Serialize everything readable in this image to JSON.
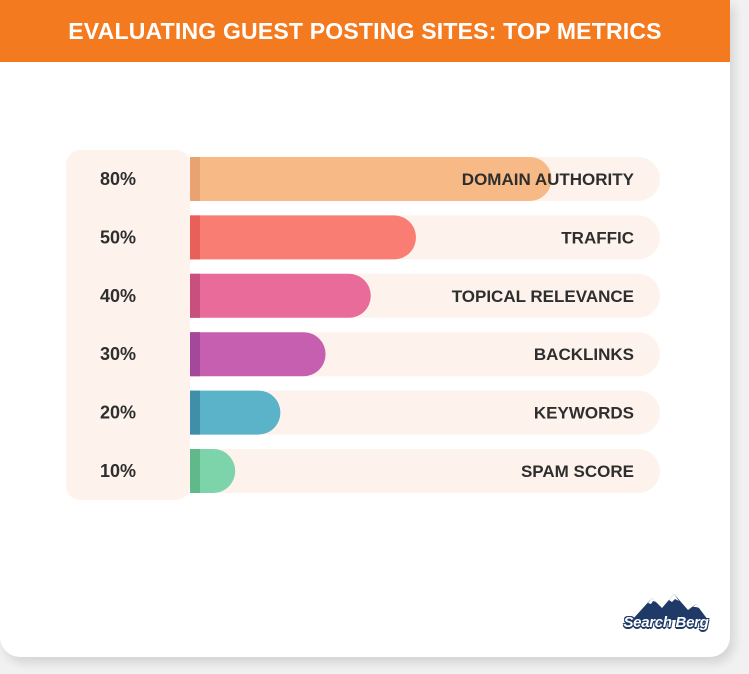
{
  "header": {
    "title": "EVALUATING GUEST POSTING SITES: TOP METRICS"
  },
  "logo": {
    "text": "Search Berg"
  },
  "chart_data": {
    "type": "bar",
    "orientation": "horizontal",
    "title": "EVALUATING GUEST POSTING SITES: TOP METRICS",
    "categories": [
      "DOMAIN AUTHORITY",
      "TRAFFIC",
      "TOPICAL RELEVANCE",
      "BACKLINKS",
      "KEYWORDS",
      "SPAM SCORE"
    ],
    "values": [
      80,
      50,
      40,
      30,
      20,
      10
    ],
    "value_labels": [
      "80%",
      "50%",
      "40%",
      "30%",
      "20%",
      "10%"
    ],
    "colors": [
      "#f7b985",
      "#fa7d74",
      "#e96b9a",
      "#c65fb0",
      "#5ab3c9",
      "#7dd3aa"
    ],
    "accent_colors": [
      "#e9a272",
      "#e96058",
      "#c9507e",
      "#a3489a",
      "#3f8fab",
      "#5fb98b"
    ],
    "ylim": [
      0,
      100
    ],
    "grid": false,
    "legend": "none"
  }
}
